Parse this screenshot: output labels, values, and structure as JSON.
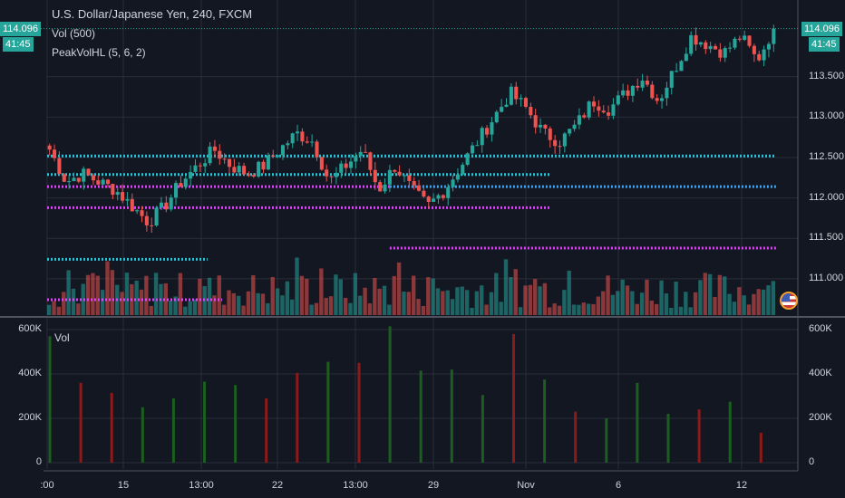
{
  "header": {
    "symbol_title": "U.S. Dollar/Japanese Yen, 240, FXCM",
    "indicator_vol": "Vol (500)",
    "indicator_peak": "PeakVolHL (5, 6, 2)"
  },
  "price_tag": {
    "value": "114.096",
    "countdown": "41:45"
  },
  "colors": {
    "up": "#26a69a",
    "down": "#ef5350",
    "cyan_line": "#26c6da",
    "magenta_line": "#e040fb",
    "blue_line": "#42a5f5",
    "bg": "#131722",
    "grid": "#2a2e39"
  },
  "price_axis": {
    "labels": [
      "113.500",
      "113.000",
      "112.500",
      "112.000",
      "111.500",
      "111.000"
    ],
    "ticks": [
      113.5,
      113.0,
      112.5,
      112.0,
      111.5,
      111.0
    ],
    "range": [
      110.55,
      114.45
    ]
  },
  "volume_pane": {
    "title": "Vol",
    "axis_labels": [
      "600K",
      "400K",
      "200K",
      "0"
    ],
    "axis_ticks": [
      600,
      400,
      200,
      0
    ]
  },
  "time_axis": {
    "labels": [
      ":00",
      "15",
      "13:00",
      "22",
      "13:00",
      "29",
      "Nov",
      "6",
      "12"
    ]
  },
  "chart_data": [
    {
      "type": "candlestick",
      "title": "U.S. Dollar/Japanese Yen, 240, FXCM",
      "price_path_anchors": [
        112.6,
        112.2,
        112.3,
        112.2,
        112.1,
        111.9,
        111.7,
        111.9,
        112.2,
        112.4,
        112.6,
        112.4,
        112.3,
        112.4,
        112.6,
        112.8,
        112.7,
        112.2,
        112.4,
        112.6,
        112.1,
        112.4,
        112.1,
        111.9,
        112.1,
        112.4,
        112.7,
        113.0,
        113.3,
        113.1,
        112.8,
        112.7,
        112.9,
        113.2,
        113.1,
        113.3,
        113.5,
        113.2,
        113.6,
        114.0,
        113.9,
        113.8,
        114.0,
        113.7,
        114.1
      ],
      "last": 114.096,
      "levels": [
        {
          "price": 112.52,
          "color": "cyan",
          "from": 0.0,
          "to": 1.0
        },
        {
          "price": 112.29,
          "color": "cyan",
          "from": 0.0,
          "to": 0.69
        },
        {
          "price": 112.14,
          "color": "magenta",
          "from": 0.0,
          "to": 0.47
        },
        {
          "price": 112.14,
          "color": "blue",
          "from": 0.47,
          "to": 1.0
        },
        {
          "price": 111.88,
          "color": "magenta",
          "from": 0.0,
          "to": 0.69
        },
        {
          "price": 111.38,
          "color": "magenta",
          "from": 0.47,
          "to": 1.0
        },
        {
          "price": 111.24,
          "color": "cyan",
          "from": 0.0,
          "to": 0.22
        },
        {
          "price": 110.74,
          "color": "magenta",
          "from": 0.0,
          "to": 0.24
        }
      ]
    },
    {
      "type": "bar",
      "title": "Vol",
      "unit": "K",
      "values": [
        570,
        360,
        315,
        250,
        290,
        365,
        350,
        290,
        405,
        455,
        450,
        615,
        415,
        420,
        305,
        580,
        375,
        230,
        200,
        360,
        220,
        240,
        275,
        135
      ],
      "directions": [
        "up",
        "down",
        "down",
        "up",
        "up",
        "up",
        "up",
        "down",
        "down",
        "up",
        "down",
        "up",
        "up",
        "up",
        "up",
        "down",
        "up",
        "down",
        "up",
        "up",
        "up",
        "down",
        "up",
        "down"
      ],
      "ylim": [
        0,
        650
      ]
    }
  ]
}
